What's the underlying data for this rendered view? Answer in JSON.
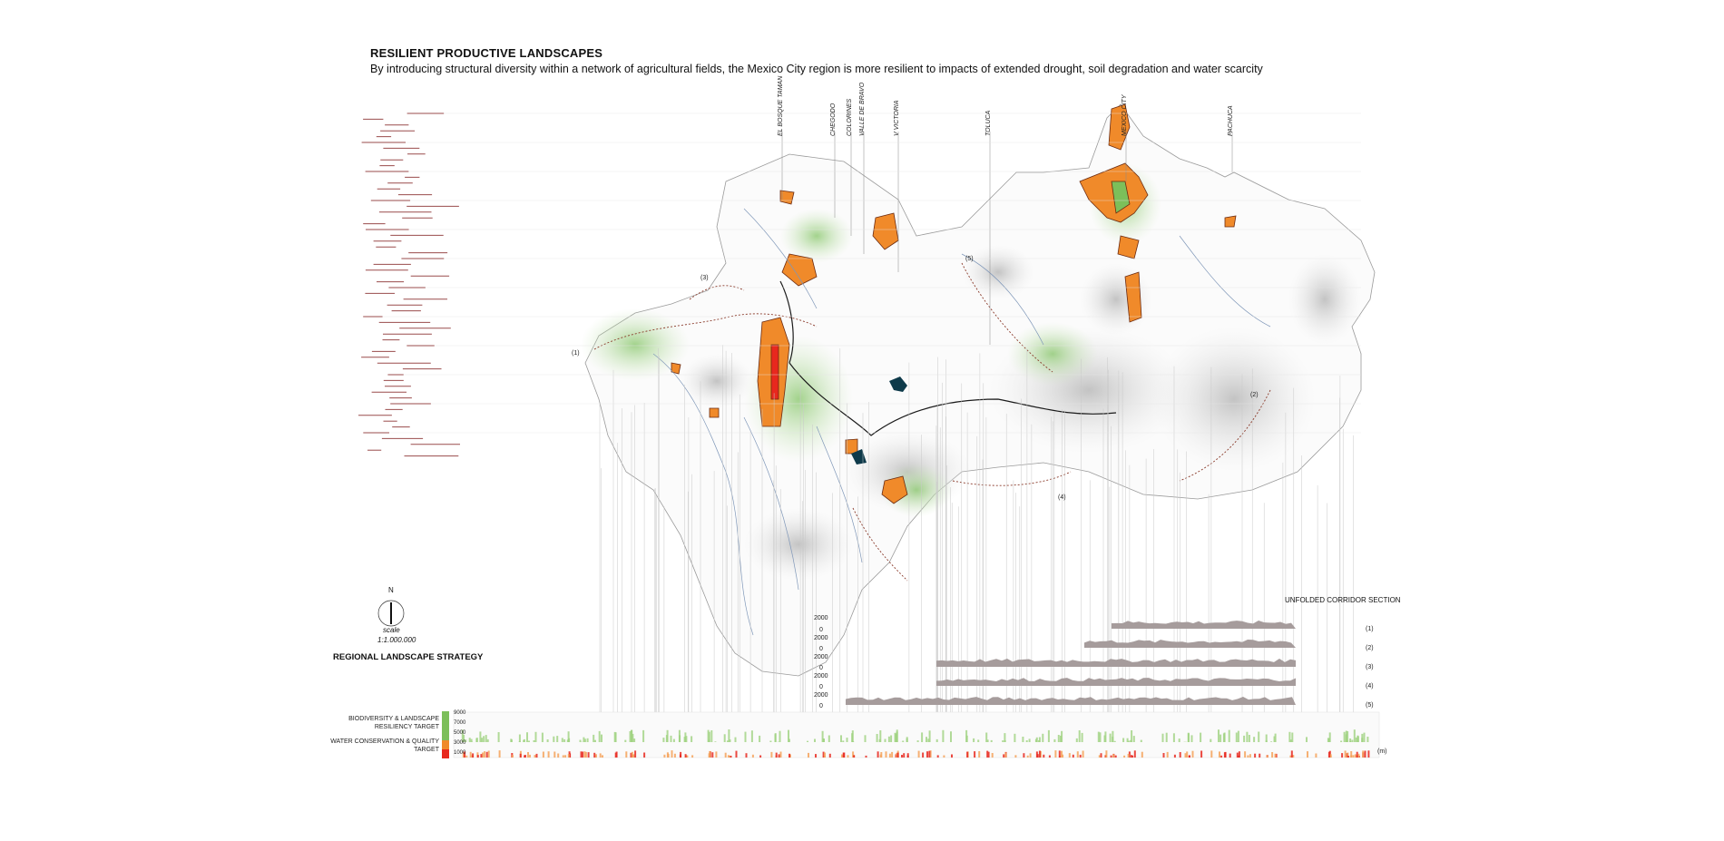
{
  "header": {
    "title": "RESILIENT PRODUCTIVE LANDSCAPES",
    "subtitle": "By introducing structural diversity within a network of agricultural fields, the Mexico City region is more resilient to impacts of extended drought, soil degradation and water scarcity"
  },
  "map": {
    "places": [
      "EL BOSQUE TAMAN",
      "CHEGODO",
      "COLORINES",
      "VALLE DE BRAVO",
      "V VICTORIA",
      "TOLUCA",
      "MEXICO CITY",
      "PACHUCA"
    ],
    "corridor_markers": [
      "(1)",
      "(2)",
      "(3)",
      "(4)",
      "(5)"
    ],
    "north": "N",
    "scale_label": "scale",
    "scale_value": "1:1.000.000",
    "strategy_title": "REGIONAL LANDSCAPE STRATEGY"
  },
  "section": {
    "title": "UNFOLDED CORRIDOR SECTION",
    "rows": [
      {
        "label": "(1)",
        "top": "2000",
        "bottom": "0"
      },
      {
        "label": "(2)",
        "top": "2000",
        "bottom": "0"
      },
      {
        "label": "(3)",
        "top": "2000",
        "bottom": "0"
      },
      {
        "label": "(4)",
        "top": "2000",
        "bottom": "0"
      },
      {
        "label": "(5)",
        "top": "2000",
        "bottom": "0"
      }
    ],
    "unit": "(m)"
  },
  "legend": {
    "biodiversity": "BIODIVERSITY & LANDSCAPE RESILIENCY TARGET",
    "water": "WATER CONSERVATION & QUALITY TARGET",
    "values": [
      "9000",
      "7000",
      "5000",
      "3000",
      "1000"
    ],
    "colors": {
      "green": "#7cbf5a",
      "orange": "#f08a2a",
      "red": "#e8281e"
    }
  }
}
